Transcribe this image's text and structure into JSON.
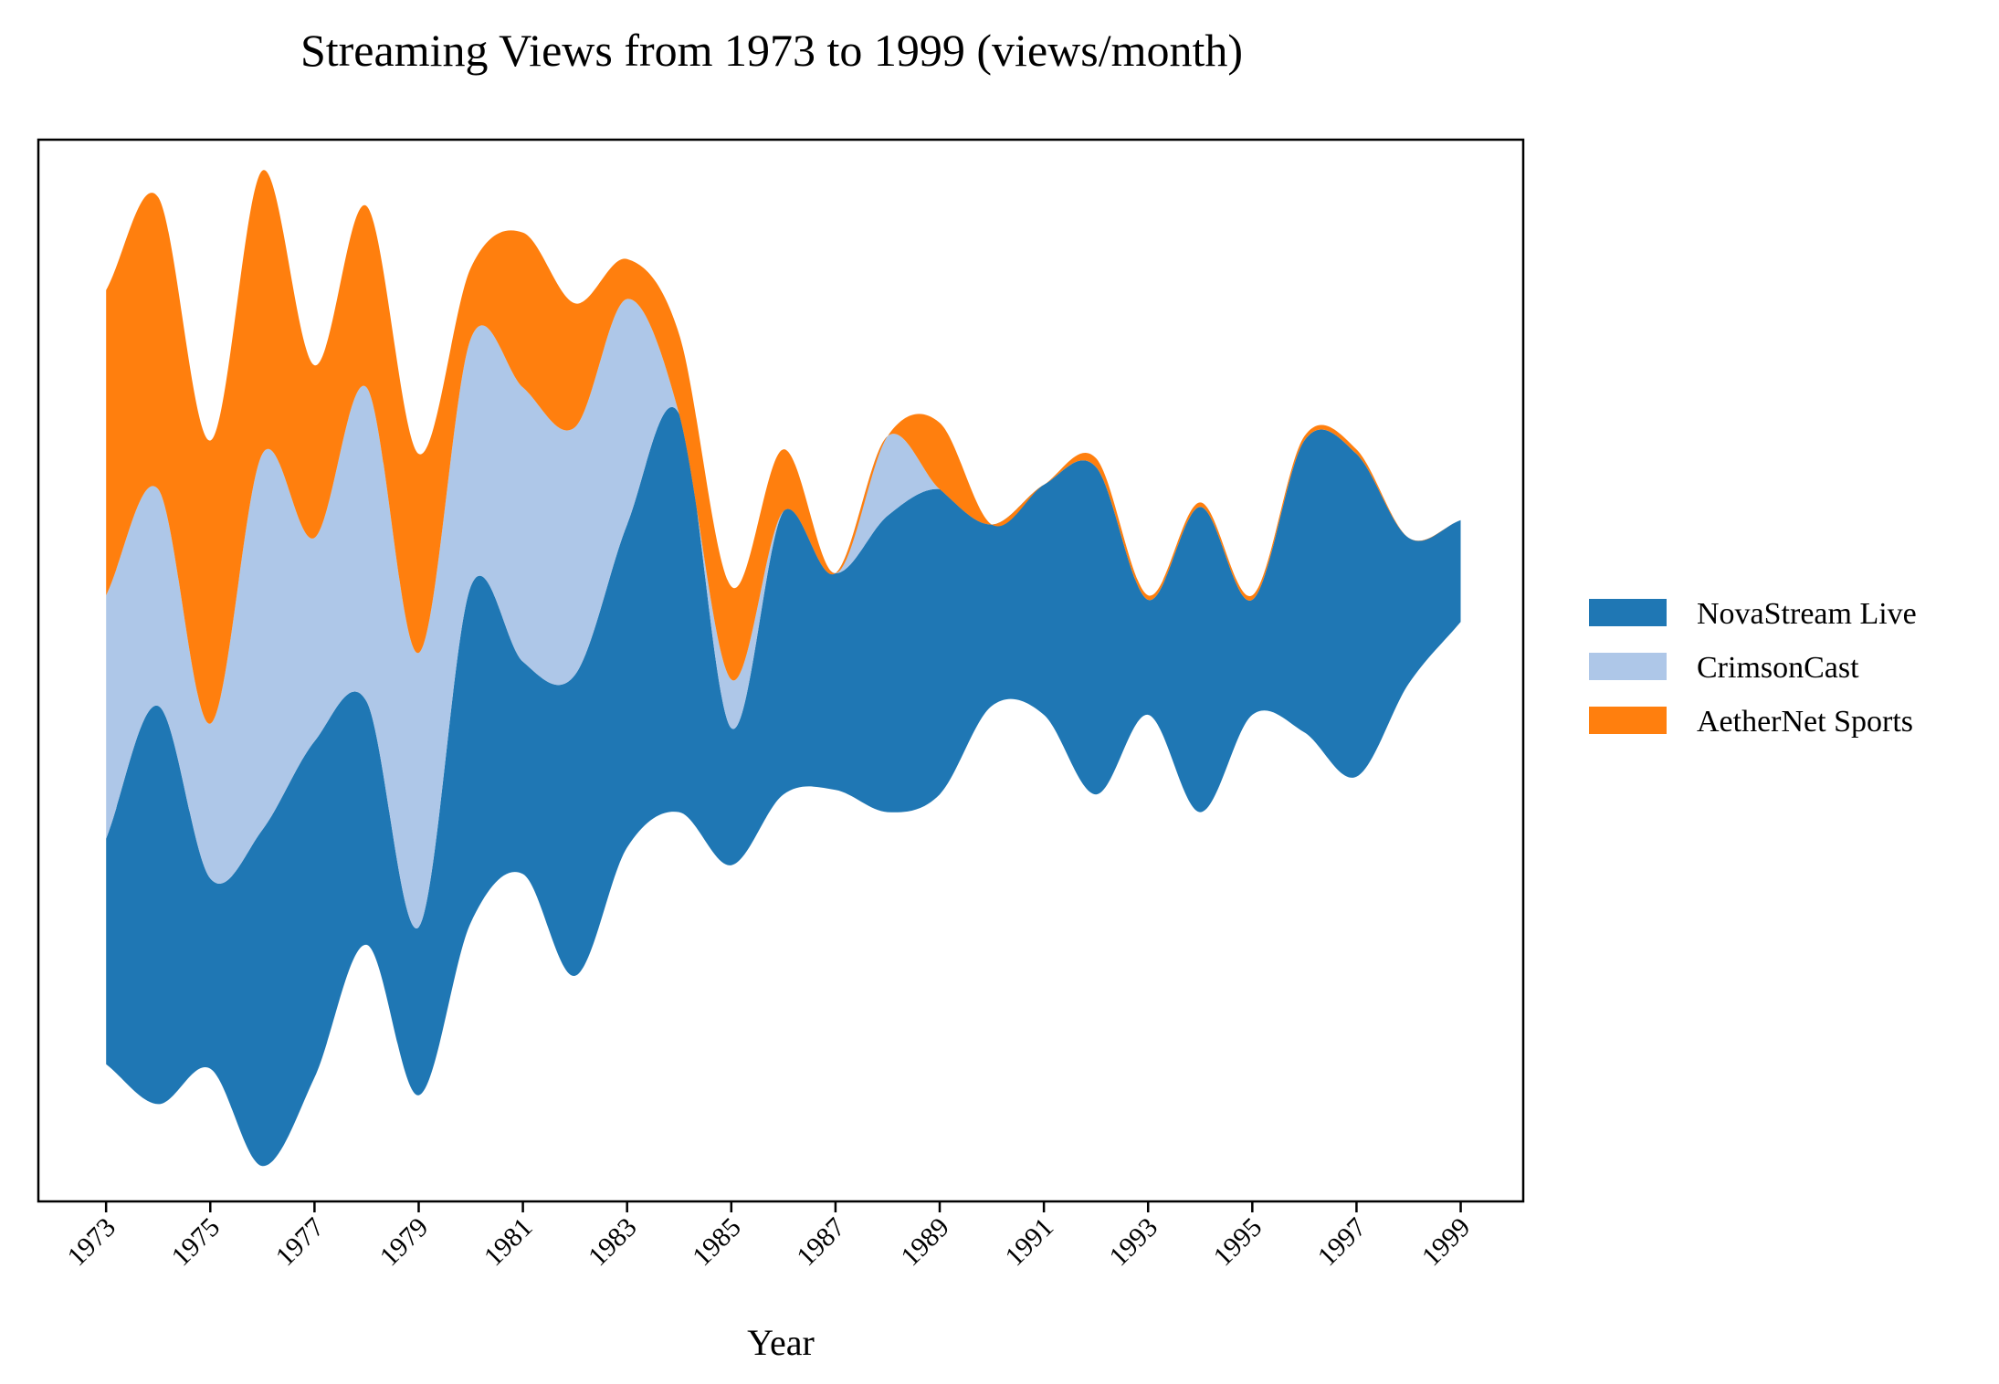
{
  "chart_data": {
    "type": "streamgraph",
    "title": "Streaming Views from 1973 to 1999 (views/month)",
    "xlabel": "Year",
    "ylabel": "",
    "x": [
      1973,
      1974,
      1975,
      1976,
      1977,
      1978,
      1979,
      1980,
      1981,
      1982,
      1983,
      1984,
      1985,
      1986,
      1987,
      1988,
      1989,
      1990,
      1991,
      1992,
      1993,
      1994,
      1995,
      1996,
      1997,
      1998,
      1999
    ],
    "xticks": [
      1973,
      1975,
      1977,
      1979,
      1981,
      1983,
      1985,
      1987,
      1989,
      1991,
      1993,
      1995,
      1997,
      1999
    ],
    "xtick_labels": [
      "1973",
      "1975",
      "1977",
      "1979",
      "1981",
      "1983",
      "1985",
      "1987",
      "1989",
      "1991",
      "1993",
      "1995",
      "1997",
      "1999"
    ],
    "xlim": [
      1971.7,
      2000.2
    ],
    "ylim": [
      0,
      1200
    ],
    "baseline": [
      155,
      110,
      150,
      40,
      140,
      290,
      120,
      315,
      370,
      255,
      400,
      440,
      380,
      460,
      465,
      440,
      460,
      560,
      550,
      460,
      550,
      440,
      550,
      530,
      480,
      585,
      655
    ],
    "series": [
      {
        "name": "NovaStream Live",
        "color": "#1f77b4",
        "values": [
          255,
          450,
          215,
          380,
          380,
          275,
          190,
          380,
          240,
          340,
          365,
          450,
          155,
          320,
          245,
          335,
          345,
          205,
          260,
          370,
          130,
          345,
          130,
          330,
          365,
          165,
          115
        ]
      },
      {
        "name": "CrimsonCast",
        "color": "#aec7e8",
        "values": [
          275,
          245,
          175,
          425,
          230,
          355,
          310,
          280,
          310,
          280,
          255,
          0,
          55,
          0,
          0,
          90,
          0,
          0,
          0,
          0,
          0,
          0,
          0,
          0,
          0,
          0,
          0
        ]
      },
      {
        "name": "AetherNet Sports",
        "color": "#ff7f0e",
        "values": [
          345,
          330,
          320,
          320,
          195,
          205,
          225,
          80,
          175,
          140,
          45,
          90,
          105,
          70,
          0,
          0,
          75,
          0,
          0,
          10,
          5,
          5,
          5,
          5,
          5,
          0,
          0
        ]
      }
    ],
    "legend_position": "right",
    "grid": false
  }
}
